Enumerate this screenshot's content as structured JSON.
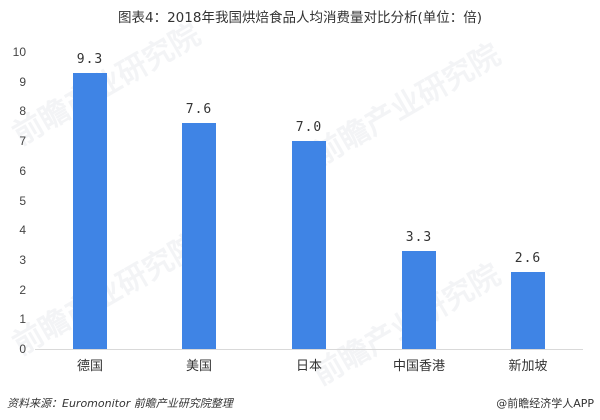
{
  "title": "图表4：2018年我国烘焙食品人均消费量对比分析(单位：倍)",
  "chart_data": {
    "type": "bar",
    "title": "图表4：2018年我国烘焙食品人均消费量对比分析(单位：倍)",
    "categories": [
      "德国",
      "美国",
      "日本",
      "中国香港",
      "新加坡"
    ],
    "values": [
      9.3,
      7.6,
      7.0,
      3.3,
      2.6
    ],
    "value_labels": [
      "9.3",
      "7.6",
      "7.0",
      "3.3",
      "2.6"
    ],
    "xlabel": "",
    "ylabel": "",
    "ylim": [
      0,
      10
    ],
    "yticks": [
      0,
      1,
      2,
      3,
      4,
      5,
      6,
      7,
      8,
      9,
      10
    ],
    "grid": false,
    "legend": null,
    "bar_color": "#3f84e5"
  },
  "source": "资料来源：Euromonitor 前瞻产业研究院整理",
  "brand": "@前瞻经济学人APP",
  "watermark": "前瞻产业研究院"
}
